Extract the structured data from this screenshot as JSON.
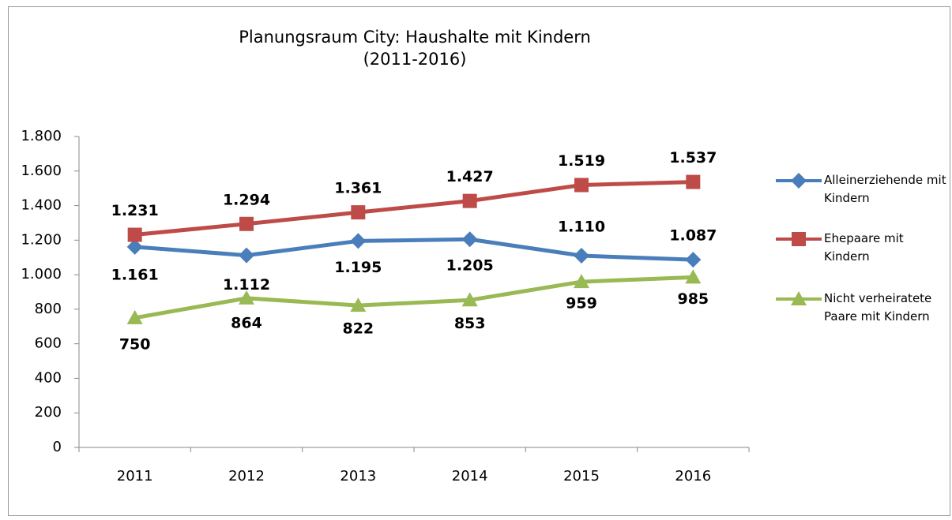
{
  "chart_data": {
    "type": "line",
    "title": [
      "Planungsraum City: Haushalte mit Kindern",
      "(2011-2016)"
    ],
    "categories": [
      "2011",
      "2012",
      "2013",
      "2014",
      "2015",
      "2016"
    ],
    "series": [
      {
        "name": "Alleinerziehende mit Kindern",
        "color": "#4a7ebb",
        "marker": "diamond",
        "values": [
          1161,
          1112,
          1195,
          1205,
          1110,
          1087
        ],
        "value_labels": [
          "1.161",
          "1.112",
          "1.195",
          "1.205",
          "1.110",
          "1.087"
        ]
      },
      {
        "name": "Ehepaare mit Kindern",
        "color": "#be4b48",
        "marker": "square",
        "values": [
          1231,
          1294,
          1361,
          1427,
          1519,
          1537
        ],
        "value_labels": [
          "1.231",
          "1.294",
          "1.361",
          "1.427",
          "1.519",
          "1.537"
        ]
      },
      {
        "name": "Nicht verheiratete Paare mit Kindern",
        "color": "#98b954",
        "marker": "triangle",
        "values": [
          750,
          864,
          822,
          853,
          959,
          985
        ],
        "value_labels": [
          "750",
          "864",
          "822",
          "853",
          "959",
          "985"
        ]
      }
    ],
    "ylim": [
      0,
      1800
    ],
    "yticks": [
      0,
      200,
      400,
      600,
      800,
      {
        "value": 1000,
        "label": "1.000"
      },
      {
        "value": 1200,
        "label": "1.200"
      },
      {
        "value": 1400,
        "label": "1.400"
      },
      {
        "value": 1600,
        "label": "1.600"
      },
      {
        "value": 1800,
        "label": "1.800"
      }
    ],
    "legend": "right"
  }
}
